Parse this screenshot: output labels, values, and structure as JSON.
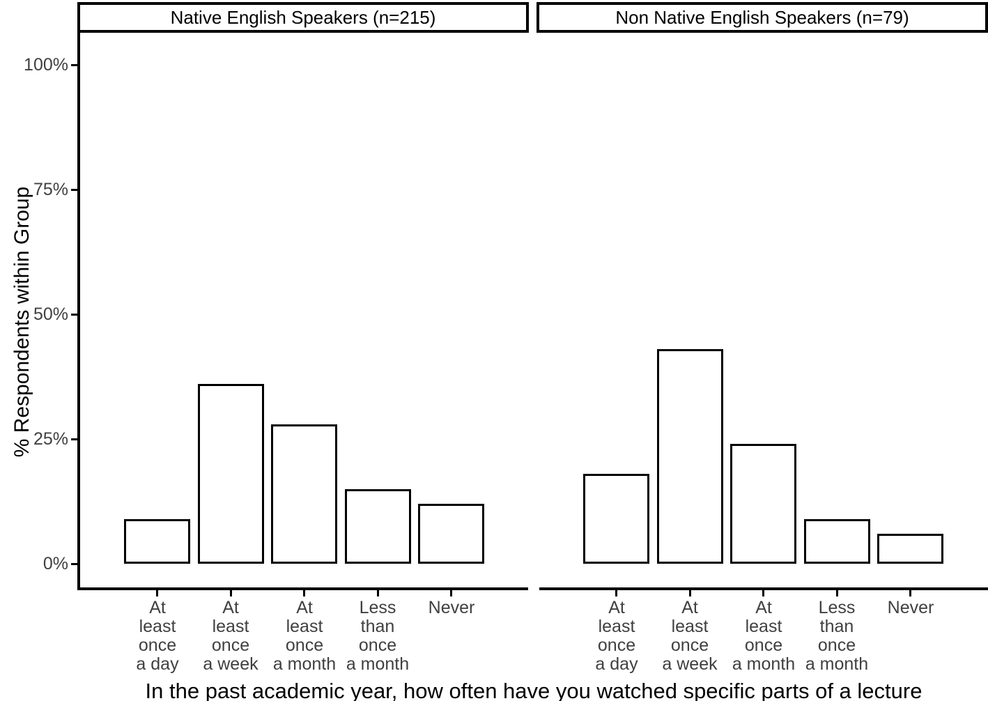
{
  "chart_data": {
    "type": "bar",
    "title": "",
    "ylabel": "% Respondents within Group",
    "xlabel": "In the past academic year, how often have you watched specific parts of a lecture",
    "categories": [
      "At least once a day",
      "At least once a week",
      "At least once a month",
      "Less than once a month",
      "Never"
    ],
    "category_lines": [
      [
        "At",
        "least",
        "once",
        "a day"
      ],
      [
        "At",
        "least",
        "once",
        "a week"
      ],
      [
        "At",
        "least",
        "once",
        "a month"
      ],
      [
        "Less",
        "than",
        "once",
        "a month"
      ],
      [
        "Never"
      ]
    ],
    "y_tick_labels": [
      "0%",
      "25%",
      "50%",
      "75%",
      "100%"
    ],
    "y_tick_values": [
      0,
      25,
      50,
      75,
      100
    ],
    "ylim": [
      0,
      100
    ],
    "grid": "off",
    "legend": "none",
    "facets": [
      {
        "title": "Native English Speakers (n=215)",
        "n": 215,
        "values": [
          9,
          36,
          28,
          15,
          12
        ]
      },
      {
        "title": "Non Native English Speakers (n=79)",
        "n": 79,
        "values": [
          18,
          43,
          24,
          9,
          6
        ]
      }
    ],
    "bar_fill": "#ffffff",
    "bar_stroke": "#000000",
    "axis_color": "#000000",
    "tick_label_color": "#404040"
  }
}
